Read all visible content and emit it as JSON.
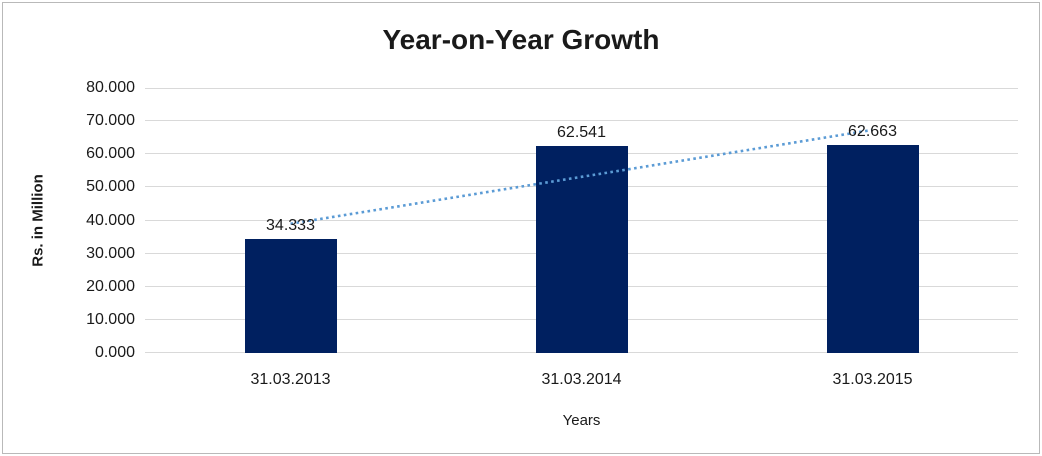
{
  "window": {
    "background": "#ffffff",
    "frame_border_color": "#b9b9b9"
  },
  "chart_data": {
    "type": "bar",
    "title": "Year-on-Year Growth",
    "categories": [
      "31.03.2013",
      "31.03.2014",
      "31.03.2015"
    ],
    "values": [
      34.333,
      62.541,
      62.663
    ],
    "data_labels": [
      "34.333",
      "62.541",
      "62.663"
    ],
    "xlabel": "Years",
    "ylabel": "Rs. in Million",
    "ylim": [
      0,
      80
    ],
    "ytick_step": 10,
    "ytick_labels_top_to_bottom": [
      "80.000",
      "70.000",
      "60.000",
      "50.000",
      "40.000",
      "30.000",
      "20.000",
      "10.000",
      "0.000"
    ],
    "grid": true,
    "legend_position": "none",
    "bar_color": "#002060",
    "gridline_color": "#d9d9d9",
    "text_color": "#1a1a1a",
    "trendline": {
      "type": "linear",
      "style": "dotted",
      "color": "#5B9BD5",
      "fit_values": [
        39.014,
        53.179,
        67.344
      ]
    }
  }
}
